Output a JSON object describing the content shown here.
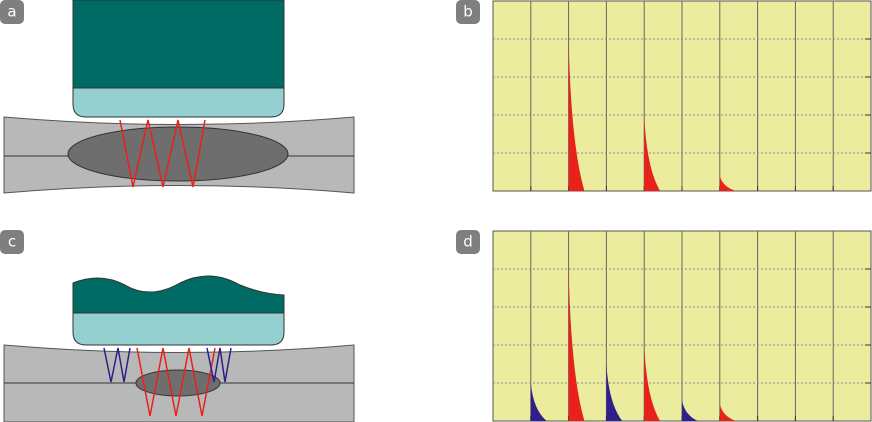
{
  "labels": [
    "a",
    "b",
    "c",
    "d"
  ],
  "scans": [
    {
      "xlim": [
        0,
        10
      ],
      "ylim": [
        0,
        5
      ],
      "xticks": [
        1,
        2,
        3,
        4,
        5,
        6,
        7,
        8,
        9
      ],
      "yticks": [
        1,
        2,
        3,
        4
      ],
      "series": [
        {
          "color": "#e8211a",
          "x": [
            2,
            4,
            6
          ],
          "values": [
            4,
            2,
            0.4
          ]
        }
      ]
    },
    {
      "xlim": [
        0,
        10
      ],
      "ylim": [
        0,
        5
      ],
      "xticks": [
        1,
        2,
        3,
        4,
        5,
        6,
        7,
        8,
        9
      ],
      "yticks": [
        1,
        2,
        3,
        4
      ],
      "series": [
        {
          "color": "#e8211a",
          "x": [
            2,
            4,
            6
          ],
          "values": [
            4,
            2,
            0.45
          ]
        },
        {
          "color": "#2e1f8a",
          "x": [
            1,
            3,
            5
          ],
          "values": [
            1,
            1.5,
            0.55
          ]
        }
      ]
    }
  ]
}
